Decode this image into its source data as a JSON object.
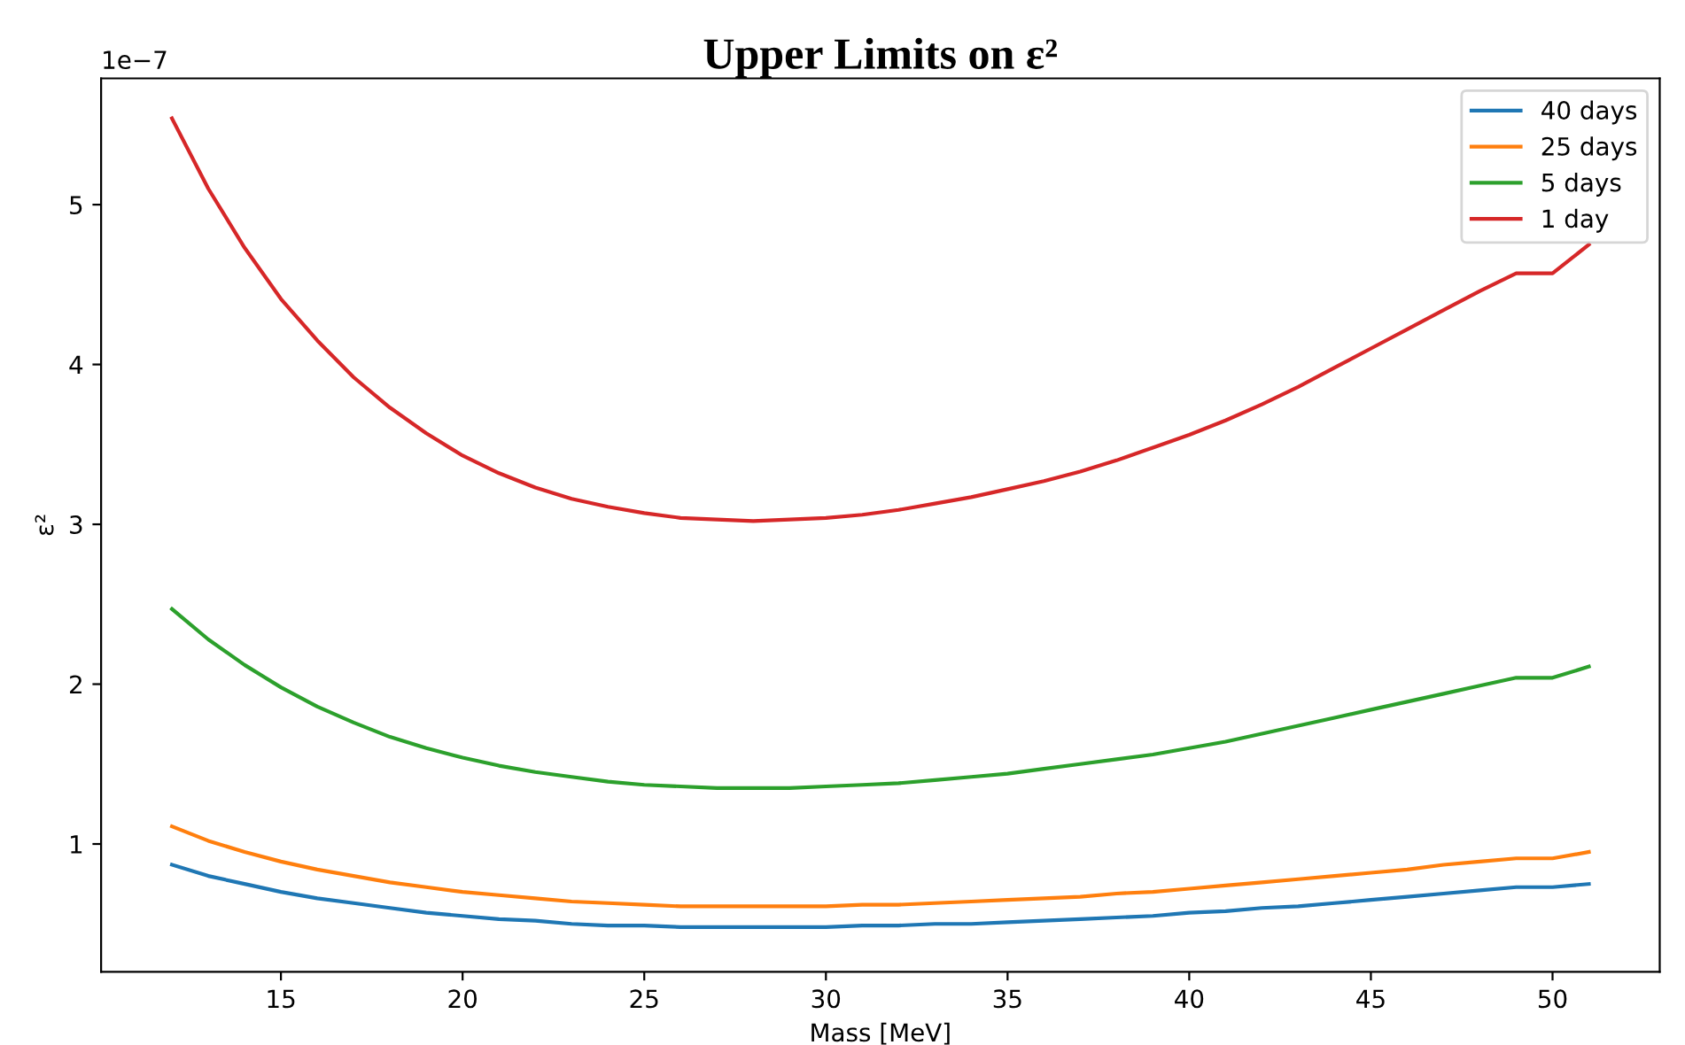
{
  "chart_data": {
    "type": "line",
    "title": "Upper Limits on ε²",
    "xlabel": "Mass [MeV]",
    "ylabel": "ε²",
    "annotations": [
      "1e−7"
    ],
    "x": [
      12,
      13,
      14,
      15,
      16,
      17,
      18,
      19,
      20,
      21,
      22,
      23,
      24,
      25,
      26,
      27,
      28,
      29,
      30,
      31,
      32,
      33,
      34,
      35,
      36,
      37,
      38,
      39,
      40,
      41,
      42,
      43,
      44,
      45,
      46,
      47,
      48,
      49,
      50,
      51
    ],
    "series": [
      {
        "name": "40 days",
        "color": "#1f77b4",
        "values": [
          0.87,
          0.8,
          0.75,
          0.7,
          0.66,
          0.63,
          0.6,
          0.57,
          0.55,
          0.53,
          0.52,
          0.5,
          0.49,
          0.49,
          0.48,
          0.48,
          0.48,
          0.48,
          0.48,
          0.49,
          0.49,
          0.5,
          0.5,
          0.51,
          0.52,
          0.53,
          0.54,
          0.55,
          0.57,
          0.58,
          0.6,
          0.61,
          0.63,
          0.65,
          0.67,
          0.69,
          0.71,
          0.73,
          0.73,
          0.75
        ]
      },
      {
        "name": "25 days",
        "color": "#ff7f0e",
        "values": [
          1.11,
          1.02,
          0.95,
          0.89,
          0.84,
          0.8,
          0.76,
          0.73,
          0.7,
          0.68,
          0.66,
          0.64,
          0.63,
          0.62,
          0.61,
          0.61,
          0.61,
          0.61,
          0.61,
          0.62,
          0.62,
          0.63,
          0.64,
          0.65,
          0.66,
          0.67,
          0.69,
          0.7,
          0.72,
          0.74,
          0.76,
          0.78,
          0.8,
          0.82,
          0.84,
          0.87,
          0.89,
          0.91,
          0.91,
          0.95
        ]
      },
      {
        "name": "5 days",
        "color": "#2ca02c",
        "values": [
          2.47,
          2.28,
          2.12,
          1.98,
          1.86,
          1.76,
          1.67,
          1.6,
          1.54,
          1.49,
          1.45,
          1.42,
          1.39,
          1.37,
          1.36,
          1.35,
          1.35,
          1.35,
          1.36,
          1.37,
          1.38,
          1.4,
          1.42,
          1.44,
          1.47,
          1.5,
          1.53,
          1.56,
          1.6,
          1.64,
          1.69,
          1.74,
          1.79,
          1.84,
          1.89,
          1.94,
          1.99,
          2.04,
          2.04,
          2.11
        ]
      },
      {
        "name": "1 day",
        "color": "#d62728",
        "values": [
          5.54,
          5.1,
          4.73,
          4.41,
          4.15,
          3.92,
          3.73,
          3.57,
          3.43,
          3.32,
          3.23,
          3.16,
          3.11,
          3.07,
          3.04,
          3.03,
          3.02,
          3.03,
          3.04,
          3.06,
          3.09,
          3.13,
          3.17,
          3.22,
          3.27,
          3.33,
          3.4,
          3.48,
          3.56,
          3.65,
          3.75,
          3.86,
          3.98,
          4.1,
          4.22,
          4.34,
          4.46,
          4.57,
          4.57,
          4.75
        ]
      }
    ],
    "xlim": [
      10.05,
      52.95
    ],
    "ylim": [
      0.2,
      5.79
    ],
    "xticks": [
      15,
      20,
      25,
      30,
      35,
      40,
      45,
      50
    ],
    "yticks": [
      1,
      2,
      3,
      4,
      5
    ],
    "grid": false,
    "legend": "top right",
    "marker": "none",
    "line_style": "solid"
  }
}
